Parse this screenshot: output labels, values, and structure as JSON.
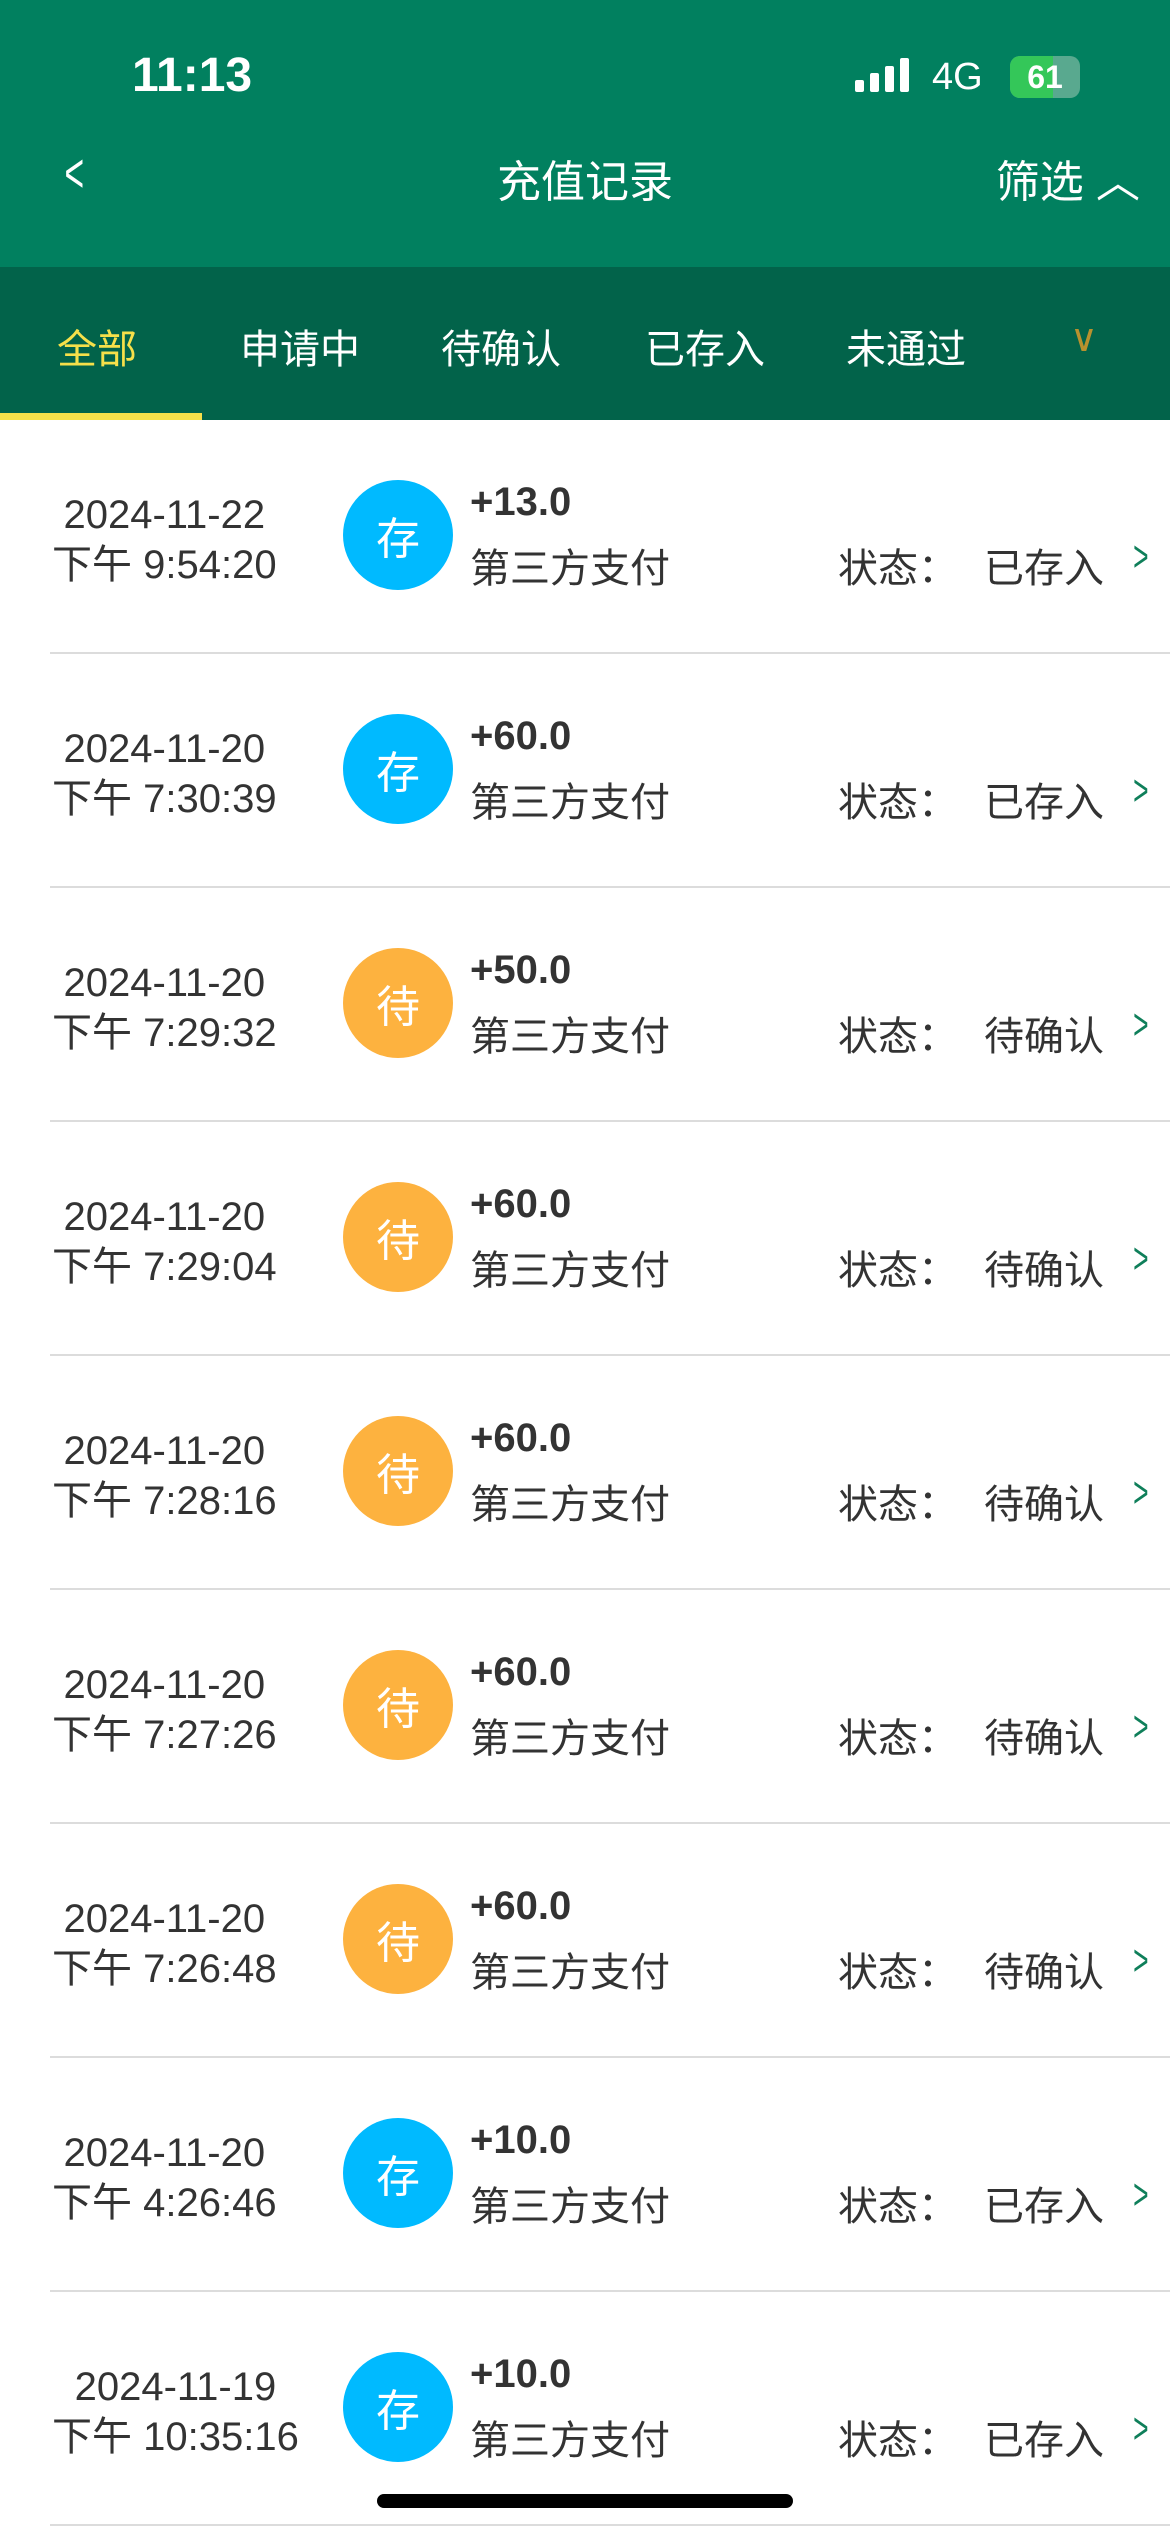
{
  "status_bar": {
    "time": "11:13",
    "network": "4G",
    "battery": "61",
    "battery_level": 61
  },
  "nav": {
    "back_icon": "chevron-left-icon",
    "title": "充值记录",
    "filter_label": "筛选",
    "filter_icon": "chevron-up-icon"
  },
  "tabs": {
    "items": [
      {
        "label": "全部",
        "active": true
      },
      {
        "label": "申请中"
      },
      {
        "label": "待确认"
      },
      {
        "label": "已存入"
      },
      {
        "label": "未通过"
      }
    ],
    "more_icon": "chevron-down-icon"
  },
  "colors": {
    "header": "#01805F",
    "tabbar": "#02634A",
    "active_tab": "#F6E04A",
    "deposited": "#00BAFF",
    "pending": "#FDB23F"
  },
  "status_label": "状态：",
  "records": [
    {
      "date": "2024-11-22",
      "time": "下午 9:54:20",
      "badge": "存",
      "type": "deposited",
      "amount": "+13.0",
      "method": "第三方支付",
      "status": "已存入"
    },
    {
      "date": "2024-11-20",
      "time": "下午 7:30:39",
      "badge": "存",
      "type": "deposited",
      "amount": "+60.0",
      "method": "第三方支付",
      "status": "已存入"
    },
    {
      "date": "2024-11-20",
      "time": "下午 7:29:32",
      "badge": "待",
      "type": "pending",
      "amount": "+50.0",
      "method": "第三方支付",
      "status": "待确认"
    },
    {
      "date": "2024-11-20",
      "time": "下午 7:29:04",
      "badge": "待",
      "type": "pending",
      "amount": "+60.0",
      "method": "第三方支付",
      "status": "待确认"
    },
    {
      "date": "2024-11-20",
      "time": "下午 7:28:16",
      "badge": "待",
      "type": "pending",
      "amount": "+60.0",
      "method": "第三方支付",
      "status": "待确认"
    },
    {
      "date": "2024-11-20",
      "time": "下午 7:27:26",
      "badge": "待",
      "type": "pending",
      "amount": "+60.0",
      "method": "第三方支付",
      "status": "待确认"
    },
    {
      "date": "2024-11-20",
      "time": "下午 7:26:48",
      "badge": "待",
      "type": "pending",
      "amount": "+60.0",
      "method": "第三方支付",
      "status": "待确认"
    },
    {
      "date": "2024-11-20",
      "time": "下午 4:26:46",
      "badge": "存",
      "type": "deposited",
      "amount": "+10.0",
      "method": "第三方支付",
      "status": "已存入"
    },
    {
      "date": "2024-11-19",
      "time": "下午 10:35:16",
      "badge": "存",
      "type": "deposited",
      "amount": "+10.0",
      "method": "第三方支付",
      "status": "已存入"
    }
  ]
}
